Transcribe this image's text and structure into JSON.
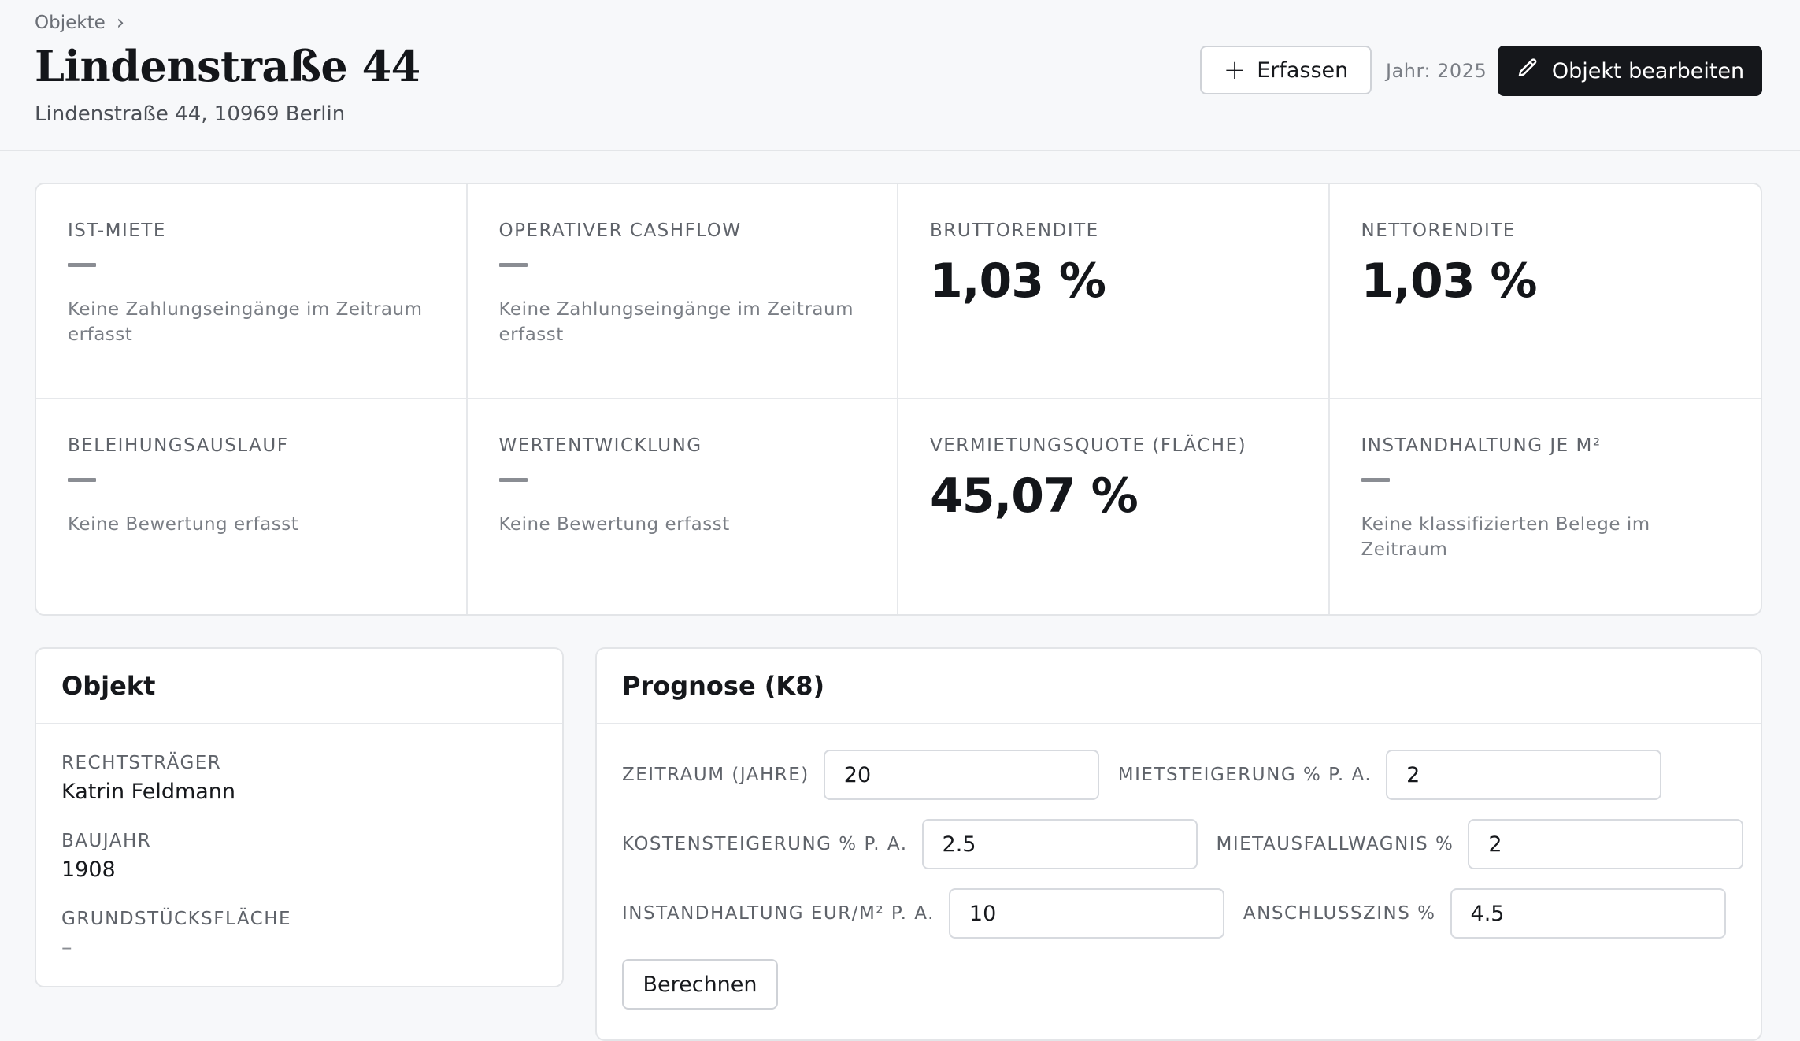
{
  "breadcrumb": {
    "root": "Objekte"
  },
  "property": {
    "title": "Lindenstraße 44",
    "address": "Lindenstraße 44, 10969 Berlin"
  },
  "actions": {
    "add_label": "Erfassen",
    "year_label": "Jahr: 2025",
    "edit_label": "Objekt bearbeiten"
  },
  "kpis": [
    {
      "label": "IST-MIETE",
      "value": "",
      "note": "Keine Zahlungseingänge im Zeitraum erfasst"
    },
    {
      "label": "OPERATIVER CASHFLOW",
      "value": "",
      "note": "Keine Zahlungseingänge im Zeitraum erfasst"
    },
    {
      "label": "BRUTTORENDITE",
      "value": "1,03 %",
      "note": ""
    },
    {
      "label": "NETTORENDITE",
      "value": "1,03 %",
      "note": ""
    },
    {
      "label": "BELEIHUNGSAUSLAUF",
      "value": "",
      "note": "Keine Bewertung erfasst"
    },
    {
      "label": "WERTENTWICKLUNG",
      "value": "",
      "note": "Keine Bewertung erfasst"
    },
    {
      "label": "VERMIETUNGSQUOTE (FLÄCHE)",
      "value": "45,07 %",
      "note": ""
    },
    {
      "label": "INSTANDHALTUNG JE M²",
      "value": "",
      "note": "Keine klassifizierten Belege im Zeitraum"
    }
  ],
  "object_card": {
    "title": "Objekt",
    "fields": [
      {
        "label": "RECHTSTRÄGER",
        "value": "Katrin Feldmann"
      },
      {
        "label": "BAUJAHR",
        "value": "1908"
      },
      {
        "label": "GRUNDSTÜCKSFLÄCHE",
        "value": "–"
      }
    ]
  },
  "forecast": {
    "title": "Prognose (K8)",
    "fields": [
      {
        "label": "ZEITRAUM (JAHRE)",
        "value": "20"
      },
      {
        "label": "MIETSTEIGERUNG % P. A.",
        "value": "2"
      },
      {
        "label": "KOSTENSTEIGERUNG % P. A.",
        "value": "2.5"
      },
      {
        "label": "MIETAUSFALLWAGNIS %",
        "value": "2"
      },
      {
        "label": "INSTANDHALTUNG EUR/M² P. A.",
        "value": "10"
      },
      {
        "label": "ANSCHLUSSZINS %",
        "value": "4.5"
      }
    ],
    "calc_label": "Berechnen"
  }
}
